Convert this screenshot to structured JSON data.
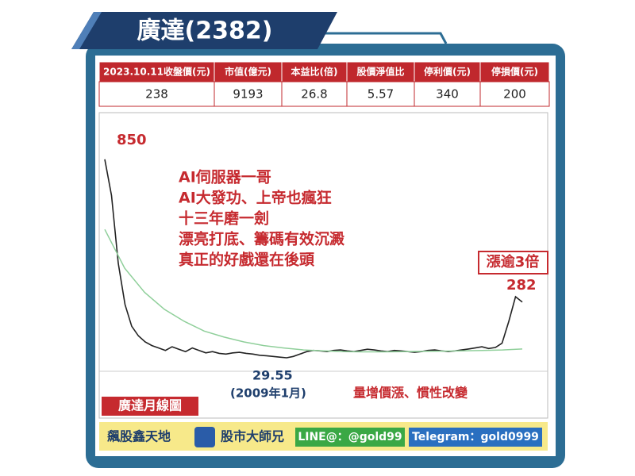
{
  "header": {
    "title": "廣達(2382)"
  },
  "table": {
    "headers": [
      "2023.10.11收盤價(元)",
      "市值(億元)",
      "本益比(倍)",
      "股價淨值比",
      "停利價(元)",
      "停損價(元)"
    ],
    "rows": [
      [
        "238",
        "9193",
        "26.8",
        "5.57",
        "340",
        "200"
      ]
    ]
  },
  "chart_data": {
    "type": "line",
    "title": "廣達月線圖",
    "ylim": [
      0,
      1000
    ],
    "series": [
      {
        "color": "#222222",
        "values": [
          850,
          700,
          420,
          250,
          160,
          120,
          95,
          80,
          70,
          60,
          75,
          65,
          55,
          70,
          60,
          50,
          55,
          48,
          45,
          50,
          52,
          48,
          45,
          40,
          38,
          35,
          32,
          29.55,
          35,
          45,
          55,
          60,
          58,
          55,
          60,
          62,
          58,
          55,
          60,
          65,
          62,
          58,
          55,
          60,
          58,
          55,
          52,
          55,
          60,
          62,
          58,
          55,
          58,
          62,
          66,
          70,
          75,
          68,
          72,
          90,
          180,
          282,
          260
        ]
      },
      {
        "color": "#8fcf9a",
        "values": [
          560,
          400,
          300,
          230,
          180,
          140,
          115,
          95,
          80,
          70,
          62,
          58,
          55,
          54,
          54,
          55,
          56,
          57,
          58,
          60,
          62,
          66
        ]
      }
    ],
    "annotations": {
      "peak": "850",
      "last": "282",
      "low": "29.55",
      "low_date": "(2009年1月)",
      "volume_note": "量增價漲、慣性改變",
      "gain": "漲逾3倍",
      "notes": [
        "AI伺服器一哥",
        "AI大發功、上帝也瘋狂",
        "十三年磨一劍",
        "漂亮打底、籌碼有效沉澱",
        "真正的好戲還在後頭"
      ]
    }
  },
  "footer": {
    "brand": "飆股鑫天地",
    "name": "股市大師兄",
    "line": "LINE@：@gold99",
    "telegram": "Telegram：gold0999"
  }
}
